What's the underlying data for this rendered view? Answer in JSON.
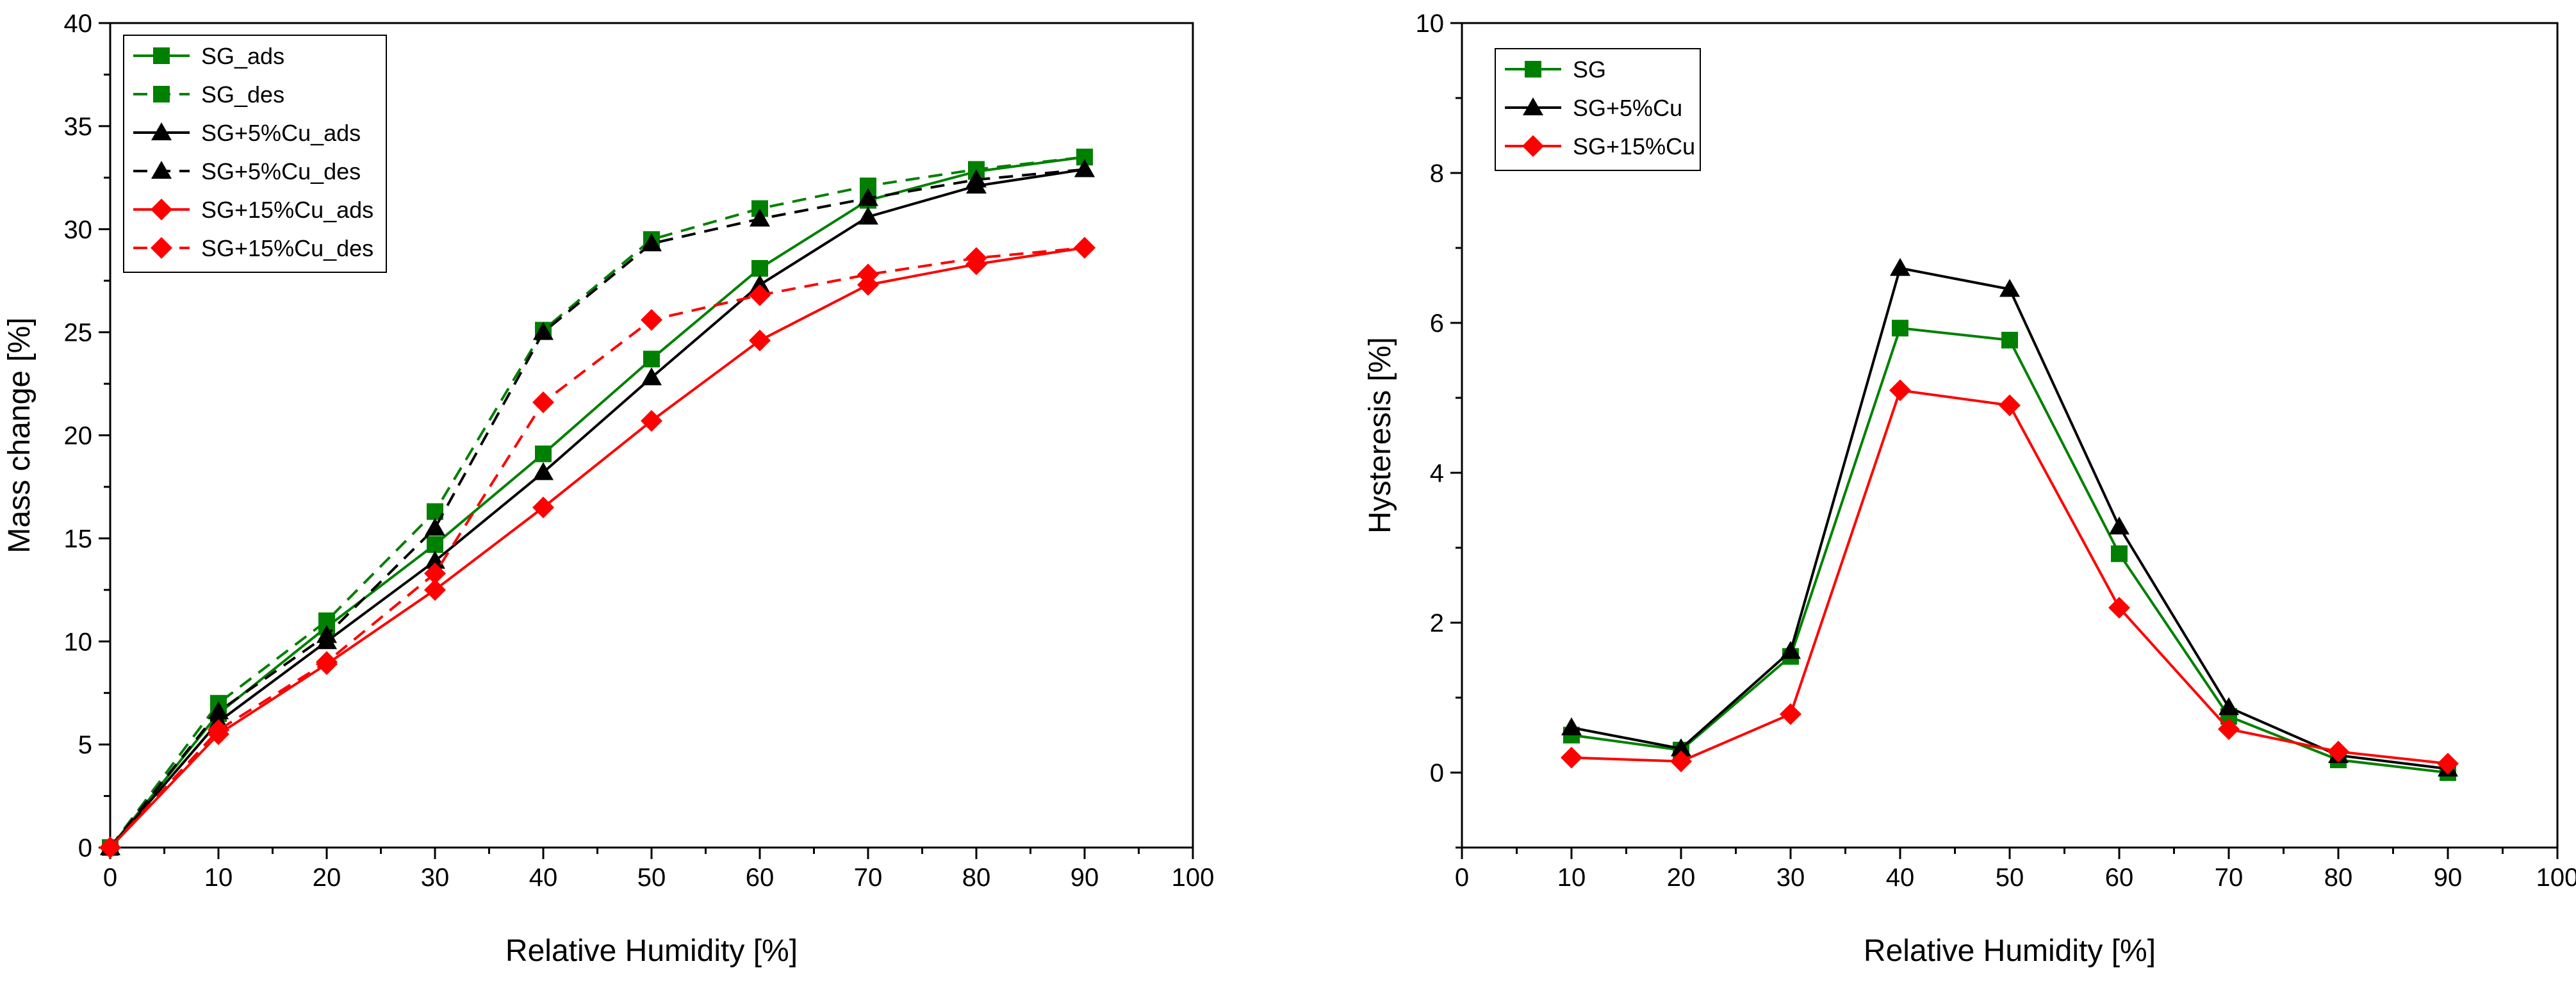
{
  "chart_data": [
    {
      "type": "line",
      "xlabel": "Relative Humidity [%]",
      "ylabel": "Mass change [%]",
      "xlim": [
        0,
        100
      ],
      "ylim": [
        0,
        40
      ],
      "xticks": [
        0,
        10,
        20,
        30,
        40,
        50,
        60,
        70,
        80,
        90,
        100
      ],
      "yticks": [
        0,
        5,
        10,
        15,
        20,
        25,
        30,
        35,
        40
      ],
      "legend_position": "top-left",
      "series": [
        {
          "name": "SG_ads",
          "color": "#008000",
          "marker": "square",
          "dash": "solid",
          "x": [
            0,
            10,
            20,
            30,
            40,
            50,
            60,
            70,
            80,
            90
          ],
          "y": [
            0,
            6.5,
            10.7,
            14.7,
            19.1,
            23.7,
            28.1,
            31.4,
            32.8,
            33.5
          ]
        },
        {
          "name": "SG_des",
          "color": "#008000",
          "marker": "square",
          "dash": "dashed",
          "x": [
            0,
            10,
            20,
            30,
            40,
            50,
            60,
            70,
            80,
            90
          ],
          "y": [
            0,
            7.0,
            11.0,
            16.3,
            25.1,
            29.5,
            31.0,
            32.1,
            32.9,
            33.5
          ]
        },
        {
          "name": "SG+5%Cu_ads",
          "color": "#000000",
          "marker": "triangle",
          "dash": "solid",
          "x": [
            0,
            10,
            20,
            30,
            40,
            50,
            60,
            70,
            80,
            90
          ],
          "y": [
            0,
            6.1,
            10.0,
            13.9,
            18.2,
            22.8,
            27.3,
            30.6,
            32.1,
            32.9
          ]
        },
        {
          "name": "SG+5%Cu_des",
          "color": "#000000",
          "marker": "triangle",
          "dash": "dashed",
          "x": [
            0,
            10,
            20,
            30,
            40,
            50,
            60,
            70,
            80,
            90
          ],
          "y": [
            0,
            6.6,
            10.3,
            15.5,
            25.0,
            29.3,
            30.5,
            31.5,
            32.4,
            32.9
          ]
        },
        {
          "name": "SG+15%Cu_ads",
          "color": "#ff0000",
          "marker": "diamond",
          "dash": "solid",
          "x": [
            0,
            10,
            20,
            30,
            40,
            50,
            60,
            70,
            80,
            90
          ],
          "y": [
            0,
            5.5,
            8.9,
            12.5,
            16.5,
            20.7,
            24.6,
            27.3,
            28.3,
            29.1
          ]
        },
        {
          "name": "SG+15%Cu_des",
          "color": "#ff0000",
          "marker": "diamond",
          "dash": "dashed",
          "x": [
            0,
            10,
            20,
            30,
            40,
            50,
            60,
            70,
            80,
            90
          ],
          "y": [
            0,
            5.7,
            9.0,
            13.3,
            21.6,
            25.6,
            26.8,
            27.8,
            28.6,
            29.1
          ]
        }
      ]
    },
    {
      "type": "line",
      "xlabel": "Relative Humidity [%]",
      "ylabel": "Hysteresis [%]",
      "xlim": [
        0,
        100
      ],
      "ylim": [
        -1,
        10
      ],
      "xticks": [
        0,
        10,
        20,
        30,
        40,
        50,
        60,
        70,
        80,
        90,
        100
      ],
      "yticks": [
        0,
        2,
        4,
        6,
        8,
        10
      ],
      "legend_position": "top-left",
      "series": [
        {
          "name": "SG",
          "color": "#008000",
          "marker": "square",
          "dash": "solid",
          "x": [
            10,
            20,
            30,
            40,
            50,
            60,
            70,
            80,
            90
          ],
          "y": [
            0.5,
            0.3,
            1.55,
            5.93,
            5.77,
            2.92,
            0.75,
            0.17,
            0.0
          ]
        },
        {
          "name": "SG+5%Cu",
          "color": "#000000",
          "marker": "triangle",
          "dash": "solid",
          "x": [
            10,
            20,
            30,
            40,
            50,
            60,
            70,
            80,
            90
          ],
          "y": [
            0.6,
            0.32,
            1.62,
            6.73,
            6.45,
            3.28,
            0.87,
            0.23,
            0.05
          ]
        },
        {
          "name": "SG+15%Cu",
          "color": "#ff0000",
          "marker": "diamond",
          "dash": "solid",
          "x": [
            10,
            20,
            30,
            40,
            50,
            60,
            70,
            80,
            90
          ],
          "y": [
            0.2,
            0.15,
            0.78,
            5.1,
            4.9,
            2.2,
            0.58,
            0.28,
            0.12
          ]
        }
      ]
    }
  ]
}
